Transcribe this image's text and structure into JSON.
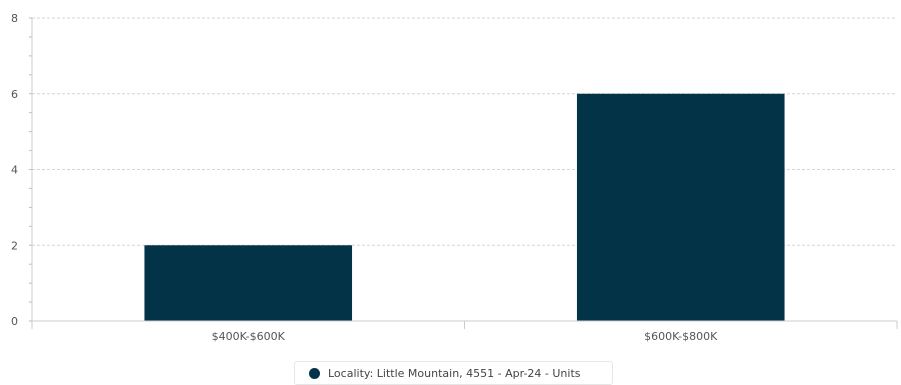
{
  "chart_data": {
    "type": "bar",
    "categories": [
      "$400K-$600K",
      "$600K-$800K"
    ],
    "series": [
      {
        "name": "Locality: Little Mountain, 4551 - Apr-24 - Units",
        "values": [
          2,
          6
        ],
        "color": "#033346"
      }
    ],
    "ylim": [
      0,
      8
    ],
    "yticks": [
      0,
      2,
      4,
      6,
      8
    ],
    "grid": true,
    "legend_position": "bottom-center"
  }
}
